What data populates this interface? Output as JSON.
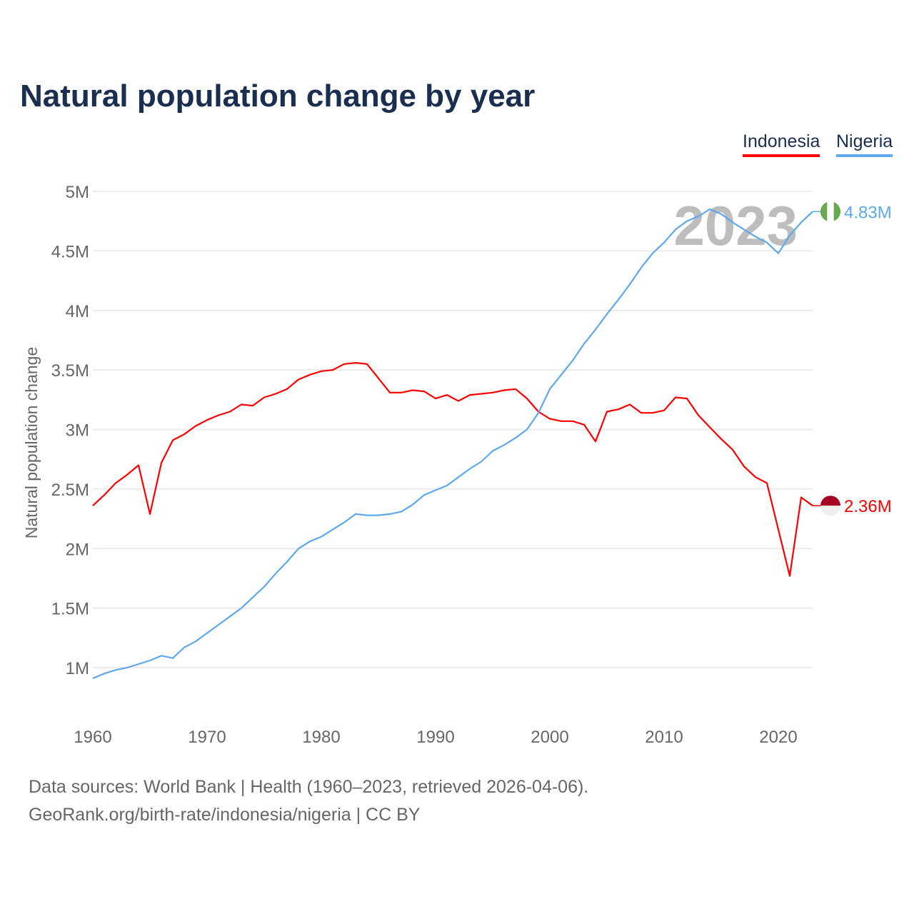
{
  "title": "Natural population change by year",
  "footer": {
    "line1": "Data sources: World Bank | Health (1960–2023, retrieved 2026-04-06).",
    "line2": "GeoRank.org/birth-rate/indonesia/nigeria | CC BY"
  },
  "chart_data": {
    "type": "line",
    "title": "Natural population change by year",
    "ylabel": "Natural population change",
    "xlabel": "",
    "xlim": [
      1960,
      2023
    ],
    "ylim": [
      0.75,
      5.0
    ],
    "y_unit": "millions",
    "grid": true,
    "legend_placement": "top-right",
    "year_label": "2023",
    "x_ticks": [
      1960,
      1970,
      1980,
      1990,
      2000,
      2010,
      2020
    ],
    "x_tick_labels": [
      "1960",
      "1970",
      "1980",
      "1990",
      "2000",
      "2010",
      "2020"
    ],
    "y_ticks": [
      1,
      1.5,
      2,
      2.5,
      3,
      3.5,
      4,
      4.5,
      5
    ],
    "y_tick_labels": [
      "1M",
      "1.5M",
      "2M",
      "2.5M",
      "3M",
      "3.5M",
      "4M",
      "4.5M",
      "5M"
    ],
    "x_start": 1960,
    "series": [
      {
        "name": "Indonesia",
        "color": "#ff0000",
        "end_label": "2.36M",
        "flag": "indonesia-flag",
        "values": [
          2.36,
          2.45,
          2.55,
          2.62,
          2.7,
          2.29,
          2.72,
          2.91,
          2.96,
          3.03,
          3.08,
          3.12,
          3.15,
          3.21,
          3.2,
          3.27,
          3.3,
          3.34,
          3.42,
          3.46,
          3.49,
          3.5,
          3.55,
          3.56,
          3.55,
          3.43,
          3.31,
          3.31,
          3.33,
          3.32,
          3.26,
          3.29,
          3.24,
          3.29,
          3.3,
          3.31,
          3.33,
          3.34,
          3.26,
          3.15,
          3.09,
          3.07,
          3.07,
          3.04,
          2.9,
          3.15,
          3.17,
          3.21,
          3.14,
          3.14,
          3.16,
          3.27,
          3.26,
          3.12,
          3.02,
          2.92,
          2.83,
          2.69,
          2.6,
          2.55,
          2.16,
          1.77,
          2.43,
          2.36
        ]
      },
      {
        "name": "Nigeria",
        "color": "#5ea8ee",
        "end_label": "4.83M",
        "flag": "nigeria-flag",
        "values": [
          0.91,
          0.95,
          0.98,
          1.0,
          1.03,
          1.06,
          1.1,
          1.08,
          1.17,
          1.22,
          1.29,
          1.36,
          1.43,
          1.5,
          1.59,
          1.68,
          1.79,
          1.89,
          2.0,
          2.06,
          2.1,
          2.16,
          2.22,
          2.29,
          2.28,
          2.28,
          2.29,
          2.31,
          2.37,
          2.45,
          2.49,
          2.53,
          2.6,
          2.67,
          2.73,
          2.82,
          2.87,
          2.93,
          3.0,
          3.14,
          3.34,
          3.46,
          3.58,
          3.72,
          3.84,
          3.97,
          4.09,
          4.22,
          4.36,
          4.48,
          4.57,
          4.68,
          4.75,
          4.79,
          4.85,
          4.81,
          4.74,
          4.68,
          4.62,
          4.57,
          4.48,
          4.63,
          4.74,
          4.83
        ]
      }
    ]
  }
}
